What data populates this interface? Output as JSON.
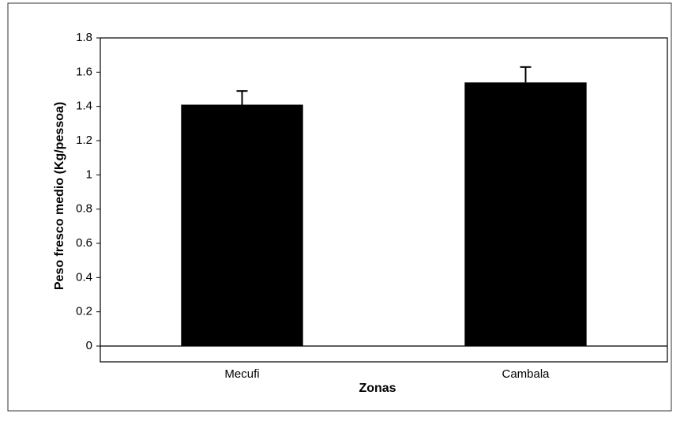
{
  "chart_data": {
    "type": "bar",
    "xlabel": "Zonas",
    "ylabel": "Peso fresco medio (Kg/pessoa)",
    "categories": [
      "Mecufi",
      "Cambala"
    ],
    "values": [
      1.41,
      1.54
    ],
    "errors": [
      0.08,
      0.09
    ],
    "color": "#000000",
    "ylim": [
      0,
      1.8
    ],
    "yticks": [
      0,
      0.2,
      0.4,
      0.6,
      0.8,
      1,
      1.2,
      1.4,
      1.6,
      1.8
    ],
    "grid": false
  }
}
